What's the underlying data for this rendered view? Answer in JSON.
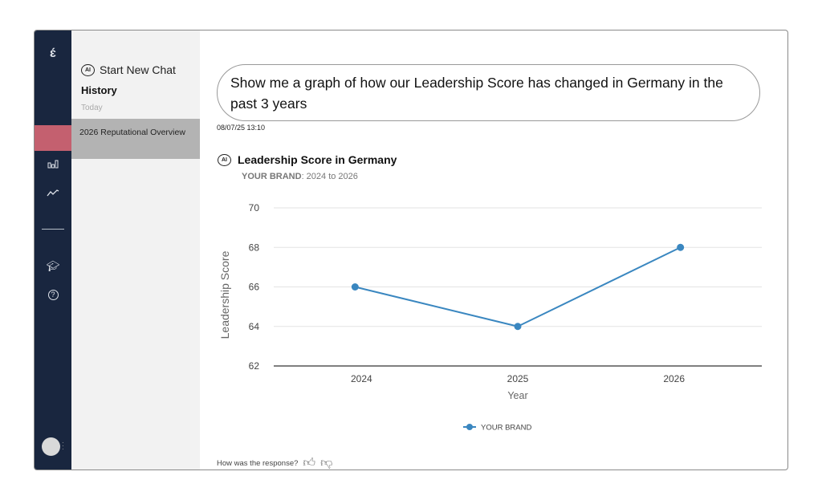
{
  "sidebar": {
    "logo": "ɛ́",
    "icons": [
      "bar-chart-icon",
      "trend-line-icon",
      "graduation-cap-icon",
      "help-icon"
    ]
  },
  "panel": {
    "new_chat": "Start New Chat",
    "ai_badge": "AI",
    "history_title": "History",
    "group": "Today",
    "items": [
      {
        "label": "2026 Reputational Overview"
      }
    ]
  },
  "chat": {
    "prompt": "Show me a graph of how our Leadership Score has changed in Germany in the past 3 years",
    "timestamp": "08/07/25 13:10",
    "title": "Leadership Score in Germany",
    "subtitle_brand": "YOUR BRAND",
    "subtitle_range": ": 2024 to 2026",
    "feedback": "How was the response?"
  },
  "chart_data": {
    "type": "line",
    "categories": [
      "2024",
      "2025",
      "2026"
    ],
    "series": [
      {
        "name": "YOUR BRAND",
        "values": [
          66,
          64,
          68
        ],
        "color": "#3a87c0"
      }
    ],
    "xlabel": "Year",
    "ylabel": "Leadership Score",
    "ylim": [
      62,
      70
    ],
    "yticks": [
      62,
      64,
      66,
      68,
      70
    ],
    "grid": true,
    "legend": "bottom"
  }
}
